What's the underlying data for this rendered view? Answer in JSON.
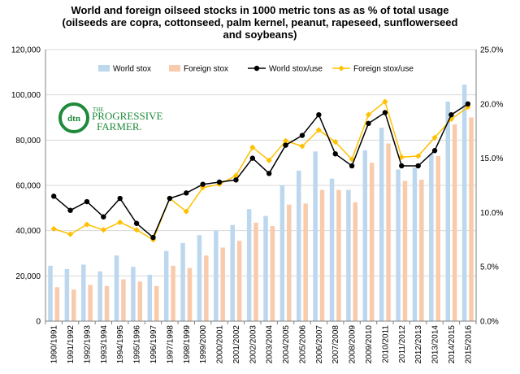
{
  "chart_data": {
    "type": "bar+line",
    "title_lines": [
      "World and foreign oilseed stocks in 1000 metric tons as as % of total usage",
      "(oilseeds are copra, cottonseed, palm kernel, peanut, rapeseed, sunflowerseed",
      "and soybeans)"
    ],
    "categories": [
      "1990/1991",
      "1991/1992",
      "1992/1993",
      "1993/1994",
      "1994/1995",
      "1995/1996",
      "1996/1997",
      "1997/1998",
      "1998/1999",
      "1999/2000",
      "2000/2001",
      "2001/2002",
      "2002/2003",
      "2003/2004",
      "2004/2005",
      "2005/2006",
      "2006/2007",
      "2007/2008",
      "2008/2009",
      "2009/2010",
      "2010/2011",
      "2011/2012",
      "2012/2013",
      "2013/2014",
      "2014/2015",
      "2015/2016"
    ],
    "left_axis": {
      "ylim": [
        0,
        120000
      ],
      "ticks": [
        "0",
        "20,000",
        "40,000",
        "60,000",
        "80,000",
        "100,000",
        "120,000"
      ],
      "tick_values": [
        0,
        20000,
        40000,
        60000,
        80000,
        100000,
        120000
      ]
    },
    "right_axis": {
      "ylim": [
        0,
        25
      ],
      "ticks": [
        "0.0%",
        "5.0%",
        "10.0%",
        "15.0%",
        "20.0%",
        "25.0%"
      ],
      "tick_values": [
        0,
        5,
        10,
        15,
        20,
        25
      ]
    },
    "series": [
      {
        "name": "World stox",
        "kind": "bar",
        "axis": "left",
        "color": "#bdd7ee",
        "values": [
          24500,
          23000,
          25000,
          22000,
          29000,
          24000,
          20500,
          31000,
          34500,
          38000,
          40000,
          42500,
          49500,
          46500,
          60000,
          66500,
          75000,
          63000,
          58000,
          75500,
          85500,
          67000,
          68000,
          74000,
          97000,
          104500
        ]
      },
      {
        "name": "Foreign stox",
        "kind": "bar",
        "axis": "left",
        "color": "#f8cbad",
        "values": [
          15000,
          14000,
          16000,
          15500,
          18500,
          17500,
          15500,
          24500,
          23500,
          29000,
          32500,
          35500,
          43500,
          42000,
          51500,
          52000,
          58000,
          58000,
          52500,
          70000,
          78500,
          62000,
          62500,
          73000,
          87000,
          90000
        ]
      },
      {
        "name": "World stox/use",
        "kind": "line",
        "axis": "right",
        "color": "#000000",
        "values": [
          11.5,
          10.2,
          11.0,
          9.6,
          11.3,
          9.0,
          7.7,
          11.3,
          11.8,
          12.6,
          12.8,
          13.0,
          15.0,
          13.6,
          16.2,
          17.1,
          19.0,
          15.4,
          14.3,
          18.2,
          19.2,
          14.3,
          14.3,
          15.7,
          19.0,
          20.0
        ]
      },
      {
        "name": "Foreign stox/use",
        "kind": "line",
        "axis": "right",
        "color": "#ffc000",
        "values": [
          8.5,
          8.0,
          8.9,
          8.4,
          9.1,
          8.4,
          7.5,
          11.3,
          10.1,
          12.3,
          12.6,
          13.4,
          16.0,
          14.8,
          16.6,
          16.1,
          17.6,
          16.5,
          14.9,
          19.0,
          20.2,
          15.1,
          15.2,
          16.9,
          18.6,
          19.7
        ]
      }
    ],
    "legend_position": "top",
    "grid": "horizontal"
  },
  "logo": {
    "abbr": "dtn",
    "line1": "THE",
    "line2": "PROGRESSIVE",
    "line3": "FARMER."
  }
}
